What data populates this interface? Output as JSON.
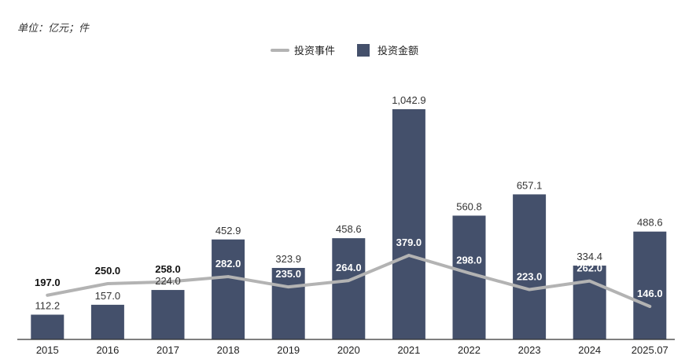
{
  "unit_note": "单位：亿元；件",
  "chart_data": {
    "type": "bar",
    "categories": [
      "2015",
      "2016",
      "2017",
      "2018",
      "2019",
      "2020",
      "2021",
      "2022",
      "2023",
      "2024",
      "2025.07"
    ],
    "series": [
      {
        "name": "投资金额",
        "kind": "bar",
        "color": "#44506b",
        "values": [
          112.2,
          157.0,
          224.0,
          452.9,
          323.9,
          458.6,
          1042.9,
          560.8,
          657.1,
          334.4,
          488.6
        ],
        "labels": [
          "112.2",
          "157.0",
          "224.0",
          "452.9",
          "323.9",
          "458.6",
          "1,042.9",
          "560.8",
          "657.1",
          "334.4",
          "488.6"
        ]
      },
      {
        "name": "投资事件",
        "kind": "line",
        "color": "#b3b3b3",
        "values": [
          197,
          250,
          258,
          282,
          235,
          264,
          379,
          298,
          223,
          262,
          146
        ],
        "labels": [
          "197.0",
          "250.0",
          "258.0",
          "282.0",
          "235.0",
          "264.0",
          "379.0",
          "298.0",
          "223.0",
          "262.0",
          "146.0"
        ]
      }
    ],
    "legend": {
      "placement": "top-center",
      "items": [
        "投资事件",
        "投资金额"
      ]
    },
    "grid": false
  }
}
